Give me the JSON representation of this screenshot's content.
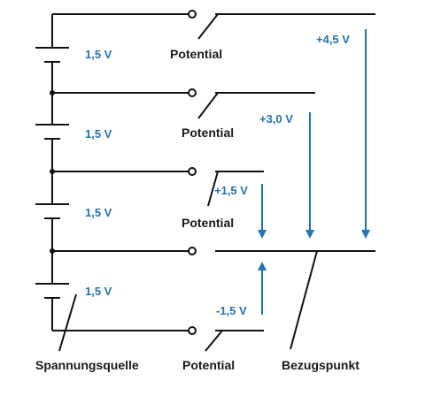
{
  "cells": [
    {
      "voltage": "1,5 V"
    },
    {
      "voltage": "1,5 V"
    },
    {
      "voltage": "1,5 V"
    },
    {
      "voltage": "1,5 V"
    }
  ],
  "potential_labels": [
    "Potential",
    "Potential",
    "Potential",
    "Potential"
  ],
  "potentials": [
    {
      "value": "+4,5 V",
      "direction": "down"
    },
    {
      "value": "+3,0 V",
      "direction": "down"
    },
    {
      "value": "+1,5 V",
      "direction": "down"
    },
    {
      "value": "-1,5 V",
      "direction": "up"
    }
  ],
  "bottom_labels": {
    "source": "Spannungsquelle",
    "reference": "Bezugspunkt"
  },
  "colors": {
    "wire": "#111111",
    "accent": "#1f73b8"
  }
}
